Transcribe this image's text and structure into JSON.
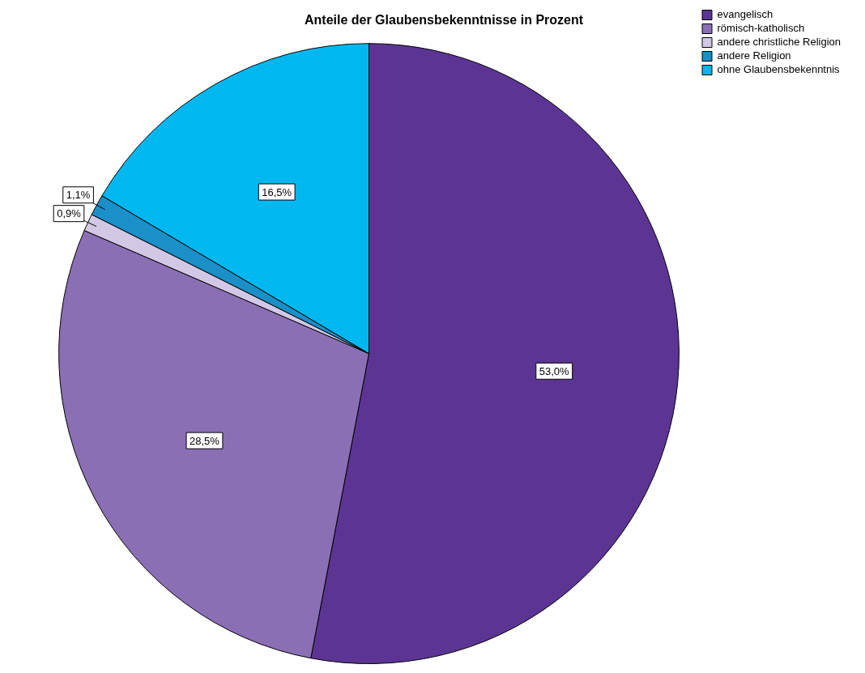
{
  "chart_data": {
    "type": "pie",
    "title": "Anteile der Glaubensbekenntnisse in Prozent",
    "categories": [
      "evangelisch",
      "römisch-katholisch",
      "andere christliche Religion",
      "andere Religion",
      "ohne Glaubensbekenntnis"
    ],
    "values": [
      53.0,
      28.5,
      0.9,
      1.1,
      16.5
    ],
    "colors": [
      "#5c3594",
      "#8b6fb5",
      "#d2c8e6",
      "#1a8fc8",
      "#00b8ef"
    ],
    "value_labels": [
      "53,0%",
      "28,5%",
      "0,9%",
      "1,1%",
      "16,5%"
    ],
    "legend": "top right"
  }
}
